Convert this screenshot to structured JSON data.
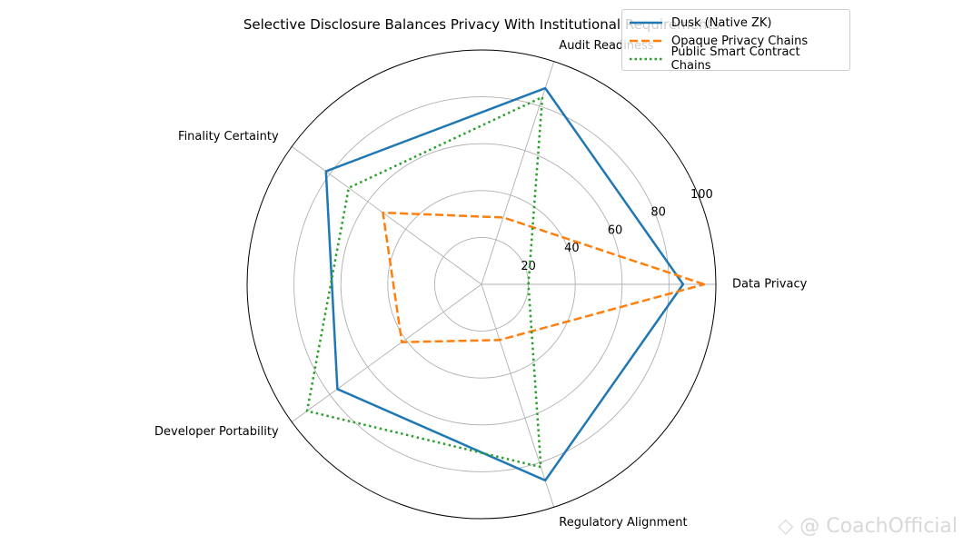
{
  "chart_data": {
    "type": "radar",
    "title": "Selective Disclosure Balances Privacy With Institutional Requirements",
    "categories": [
      "Data Privacy",
      "Audit Readiness",
      "Finality Certainty",
      "Developer Portability",
      "Regulatory Alignment"
    ],
    "rlim": [
      0,
      100
    ],
    "rticks": [
      20,
      40,
      60,
      80,
      100
    ],
    "grid": true,
    "legend_position": "top-right",
    "series": [
      {
        "name": "Dusk (Native ZK)",
        "values": [
          86,
          88,
          82,
          76,
          88
        ],
        "color": "#1f77b4",
        "style": "solid"
      },
      {
        "name": "Opaque Privacy Chains",
        "values": [
          95,
          30,
          52,
          42,
          25
        ],
        "color": "#ff7f0e",
        "style": "dashed"
      },
      {
        "name": "Public Smart Contract Chains",
        "values": [
          20,
          84,
          70,
          92,
          82
        ],
        "color": "#2ca02c",
        "style": "dotted"
      }
    ]
  },
  "watermark": "◇ @ CoachOfficial"
}
